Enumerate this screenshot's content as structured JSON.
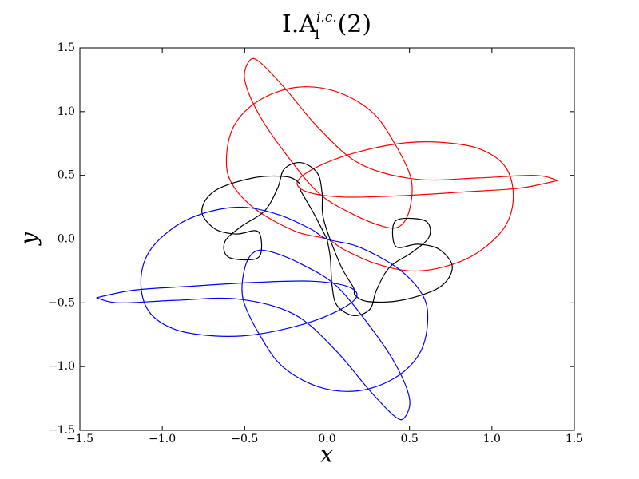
{
  "chart_data": {
    "type": "line",
    "title": {
      "main": "I.A",
      "sup": "i.c.",
      "sub": "1",
      "tail": "(2)"
    },
    "x_label": "x",
    "y_label": "y",
    "xlim": [
      -1.5,
      1.5
    ],
    "ylim": [
      -1.5,
      1.5
    ],
    "xticks": [
      {
        "value": -1.5,
        "label": "−1.5"
      },
      {
        "value": -1,
        "label": "−1.0"
      },
      {
        "value": -0.5,
        "label": "−0.5"
      },
      {
        "value": 0,
        "label": "0.0"
      },
      0.5,
      {
        "value": 1,
        "label": "1.0"
      },
      1.5
    ],
    "yticks": [
      {
        "value": -1.5,
        "label": "−1.5"
      },
      {
        "value": -1,
        "label": "−1.0"
      },
      {
        "value": -0.5,
        "label": "−0.5"
      },
      {
        "value": 0,
        "label": "0.0"
      },
      0.5,
      {
        "value": 1,
        "label": "1.0"
      },
      1.5
    ],
    "series": [
      {
        "color": "#ff0000",
        "x": [
          1.4,
          1.17,
          0.83,
          0.44,
          0.1,
          -0.12,
          -0.18,
          -0.07,
          0.15,
          0.44,
          0.68,
          0.92,
          1.08,
          1.13,
          1.08,
          0.92,
          0.73,
          0.51,
          0.29,
          0.1,
          0.0,
          -0.19,
          -0.43,
          -0.58,
          -0.61,
          -0.56,
          -0.41,
          -0.19,
          0.05,
          0.27,
          0.41,
          0.51,
          0.5,
          0.44,
          0.34,
          0.15,
          -0.05,
          -0.24,
          -0.41,
          -0.5,
          -0.47,
          -0.41,
          -0.26,
          -0.05,
          0.2,
          0.54,
          0.92,
          1.26,
          1.4
        ],
        "y": [
          0.46,
          0.4,
          0.37,
          0.34,
          0.33,
          0.37,
          0.45,
          0.56,
          0.67,
          0.75,
          0.76,
          0.71,
          0.57,
          0.34,
          0.1,
          -0.1,
          -0.21,
          -0.25,
          -0.19,
          -0.08,
          0.0,
          0.06,
          0.23,
          0.44,
          0.65,
          0.9,
          1.09,
          1.19,
          1.16,
          1.0,
          0.75,
          0.47,
          0.23,
          0.1,
          0.1,
          0.2,
          0.36,
          0.65,
          0.97,
          1.25,
          1.4,
          1.39,
          1.19,
          0.87,
          0.59,
          0.47,
          0.48,
          0.5,
          0.46
        ]
      },
      {
        "color": "#000000",
        "x": [
          0,
          -0.08,
          -0.16,
          -0.17,
          -0.25,
          -0.45,
          -0.68,
          -0.76,
          -0.68,
          -0.55,
          -0.42,
          -0.4,
          -0.45,
          -0.6,
          -0.62,
          -0.52,
          -0.38,
          -0.3,
          -0.26,
          -0.16,
          -0.06,
          -0.03,
          -0.02,
          0.08,
          0.16,
          0.17,
          0.25,
          0.45,
          0.68,
          0.76,
          0.68,
          0.55,
          0.42,
          0.4,
          0.45,
          0.6,
          0.62,
          0.52,
          0.38,
          0.3,
          0.26,
          0.16,
          0.06,
          0.03,
          0.02,
          0
        ],
        "y": [
          0,
          0.2,
          0.38,
          0.44,
          0.49,
          0.48,
          0.38,
          0.22,
          0.08,
          0.04,
          0.06,
          -0.1,
          -0.16,
          -0.14,
          -0.02,
          0.1,
          0.22,
          0.4,
          0.55,
          0.6,
          0.52,
          0.36,
          0.15,
          -0.2,
          -0.38,
          -0.44,
          -0.49,
          -0.48,
          -0.38,
          -0.22,
          -0.08,
          -0.04,
          -0.06,
          0.1,
          0.16,
          0.14,
          0.02,
          -0.1,
          -0.22,
          -0.4,
          -0.55,
          -0.6,
          -0.52,
          -0.36,
          -0.15,
          0
        ]
      },
      {
        "color": "#0000ff",
        "x": [
          -1.4,
          -1.17,
          -0.83,
          -0.44,
          -0.1,
          0.12,
          0.18,
          0.07,
          -0.15,
          -0.44,
          -0.68,
          -0.92,
          -1.08,
          -1.13,
          -1.08,
          -0.92,
          -0.73,
          -0.51,
          -0.29,
          -0.1,
          0.0,
          0.19,
          0.43,
          0.58,
          0.61,
          0.56,
          0.41,
          0.19,
          -0.05,
          -0.27,
          -0.41,
          -0.51,
          -0.5,
          -0.44,
          -0.34,
          -0.15,
          0.05,
          0.24,
          0.41,
          0.5,
          0.47,
          0.41,
          0.26,
          0.05,
          -0.2,
          -0.54,
          -0.92,
          -1.26,
          -1.4
        ],
        "y": [
          -0.46,
          -0.4,
          -0.37,
          -0.34,
          -0.33,
          -0.37,
          -0.45,
          -0.56,
          -0.67,
          -0.75,
          -0.76,
          -0.71,
          -0.57,
          -0.34,
          -0.1,
          0.1,
          0.21,
          0.25,
          0.19,
          0.08,
          0.0,
          -0.06,
          -0.23,
          -0.44,
          -0.65,
          -0.9,
          -1.09,
          -1.19,
          -1.16,
          -1.0,
          -0.75,
          -0.47,
          -0.23,
          -0.1,
          -0.1,
          -0.2,
          -0.36,
          -0.65,
          -0.97,
          -1.25,
          -1.4,
          -1.39,
          -1.19,
          -0.87,
          -0.59,
          -0.47,
          -0.48,
          -0.5,
          -0.46
        ]
      }
    ]
  }
}
